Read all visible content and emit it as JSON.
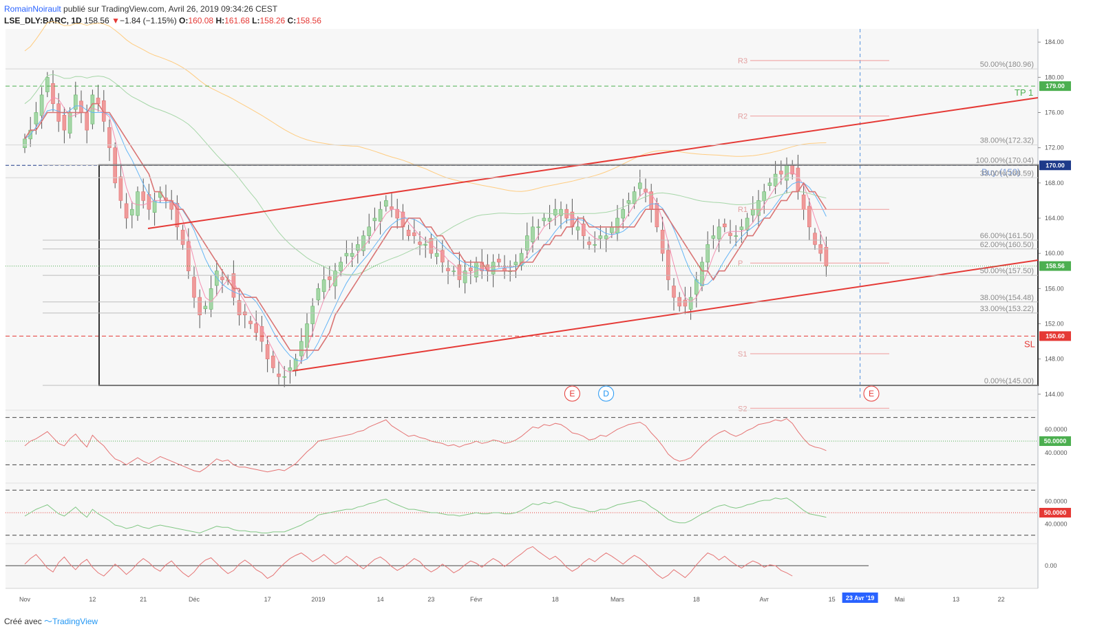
{
  "header": {
    "author": "RomainNoirault",
    "published": "publié sur TradingView.com, Avril 26, 2019 09:34:26 CEST",
    "symbol": "LSE_DLY:BARC, 1D",
    "last": "158.56",
    "change_arrow": "▼",
    "change": "−1.84 (−1.15%)",
    "o_label": "O:",
    "o_value": "160.08",
    "h_label": "H:",
    "h_value": "161.68",
    "l_label": "L:",
    "l_value": "158.26",
    "c_label": "C:",
    "c_value": "158.56"
  },
  "footer": {
    "created_with": "Créé avec",
    "brand": "TradingView"
  },
  "colors": {
    "up": "#a5d6a7",
    "down": "#ef9a9a",
    "wick": "#555555",
    "channel": "#e53935",
    "box": "#333333",
    "tp": "#4caf50",
    "sl": "#e53935",
    "sma_blue": "#64b5f6",
    "sma_pink": "#f48fb1",
    "sma_green": "#a5d6a7",
    "sma_orange": "#ffcc80",
    "rsi": "#e57373",
    "osc2": "#81c784",
    "last_price_tag": "#4caf50",
    "cursor_tag": "#2962ff"
  },
  "chart_data": [
    {
      "type": "candlestick",
      "symbol": "LSE_DLY:BARC",
      "interval": "1D",
      "y_axis": {
        "ticks": [
          144.0,
          148.0,
          152.0,
          156.0,
          160.0,
          164.0,
          168.0,
          172.0,
          176.0,
          180.0,
          184.0
        ],
        "tick_labels": [
          "144.00",
          "148.00",
          "152.00",
          "156.00",
          "160.00",
          "164.00",
          "168.00",
          "172.00",
          "176.00",
          "180.00",
          "184.00"
        ],
        "range": [
          142.5,
          185.5
        ]
      },
      "x_axis": {
        "labels": [
          "Nov",
          "12",
          "21",
          "Déc",
          "17",
          "2019",
          "14",
          "23",
          "Févr",
          "18",
          "Mars",
          "18",
          "Avr",
          "15",
          "Mai",
          "13",
          "22"
        ],
        "label_bar_index": [
          0,
          12,
          21,
          30,
          43,
          52,
          63,
          72,
          80,
          94,
          105,
          119,
          131,
          143,
          155,
          165,
          173
        ],
        "cursor_label": "23 Avr '19",
        "cursor_bar_index": 148
      },
      "close": [
        173,
        174,
        176,
        178,
        180,
        177,
        175,
        174,
        176,
        178,
        176,
        174,
        178,
        177,
        175,
        172,
        168,
        166,
        164,
        165,
        167,
        166,
        165,
        166,
        167,
        166,
        165,
        163,
        161,
        158,
        155,
        153,
        154,
        156,
        158,
        157,
        157,
        155,
        153,
        153,
        152,
        151,
        150,
        148,
        147,
        146,
        146,
        147,
        148,
        150,
        152,
        154,
        156,
        157,
        157,
        158,
        159,
        160,
        160,
        161,
        162,
        163,
        164,
        165,
        166,
        165,
        164,
        163,
        162,
        162,
        161,
        161,
        160,
        160,
        159,
        158,
        158,
        157,
        158,
        158,
        159,
        158,
        158,
        159,
        159,
        158,
        158,
        159,
        160,
        162,
        163,
        163,
        164,
        164,
        165,
        165,
        164,
        163,
        163,
        162,
        161,
        161,
        162,
        162,
        163,
        164,
        165,
        166,
        167,
        168,
        167,
        165,
        163,
        160,
        157,
        155,
        154,
        154,
        155,
        157,
        159,
        161,
        162,
        163,
        163,
        162,
        162,
        163,
        164,
        165,
        166,
        167,
        168,
        169,
        169,
        170,
        169,
        167,
        165,
        163,
        161,
        160,
        158.56
      ],
      "annotations": {
        "horizontal_levels": [
          {
            "label": "TP 1",
            "price": 179.0,
            "tag": "179.00"
          },
          {
            "label": "SL",
            "price": 150.6,
            "tag": "150.60"
          },
          {
            "label": "Buy (150)",
            "price": 170.0,
            "tag": "170.00"
          }
        ],
        "last_price_tag": "158.56",
        "fibonacci": [
          {
            "level": "100.00%(170.04)",
            "price": 170.04
          },
          {
            "level": "66.00%(161.50)",
            "price": 161.5
          },
          {
            "level": "62.00%(160.50)",
            "price": 160.5
          },
          {
            "level": "50.00%(157.50)",
            "price": 157.5
          },
          {
            "level": "38.00%(154.48)",
            "price": 154.48
          },
          {
            "level": "33.00%(153.22)",
            "price": 153.22
          },
          {
            "level": "0.00%(145.00)",
            "price": 145.0
          }
        ],
        "fibonacci_extension": [
          {
            "level": "50.00%(180.96)",
            "price": 180.96
          },
          {
            "level": "38.00%(172.32)",
            "price": 172.32
          },
          {
            "level": "33.00%(168.59)",
            "price": 168.59
          }
        ],
        "pivots": [
          {
            "label": "R3",
            "price": 181.9
          },
          {
            "label": "R2",
            "price": 175.6
          },
          {
            "label": "R1",
            "price": 165.0
          },
          {
            "label": "P",
            "price": 158.9
          },
          {
            "label": "S1",
            "price": 148.6
          },
          {
            "label": "S2",
            "price": 142.4
          }
        ],
        "events": [
          {
            "label": "E",
            "bar_index": 97,
            "kind": "earnings"
          },
          {
            "label": "D",
            "bar_index": 103,
            "kind": "dividend"
          },
          {
            "label": "E",
            "bar_index": 150,
            "kind": "earnings"
          }
        ]
      }
    },
    {
      "type": "line",
      "name": "",
      "y_axis": {
        "tick_labels": [
          "60.0000",
          "40.0000"
        ],
        "ticks": [
          60,
          40
        ],
        "range": [
          25,
          75
        ]
      },
      "bands": [
        70,
        30
      ],
      "mid_tag": "50.0000",
      "values": [
        46,
        50,
        52,
        55,
        58,
        53,
        48,
        46,
        52,
        56,
        50,
        45,
        55,
        50,
        46,
        40,
        35,
        33,
        30,
        33,
        36,
        33,
        31,
        34,
        37,
        35,
        33,
        31,
        29,
        27,
        25,
        24,
        27,
        31,
        35,
        33,
        34,
        30,
        28,
        28,
        27,
        26,
        25,
        24,
        25,
        26,
        25,
        28,
        31,
        36,
        41,
        45,
        50,
        51,
        52,
        53,
        54,
        55,
        56,
        58,
        59,
        62,
        64,
        66,
        68,
        63,
        60,
        57,
        54,
        55,
        53,
        52,
        50,
        49,
        48,
        46,
        47,
        45,
        47,
        48,
        50,
        48,
        49,
        51,
        50,
        48,
        49,
        51,
        54,
        58,
        62,
        61,
        64,
        63,
        65,
        64,
        61,
        57,
        56,
        54,
        51,
        52,
        55,
        54,
        57,
        60,
        62,
        64,
        65,
        66,
        63,
        57,
        52,
        46,
        39,
        35,
        33,
        34,
        36,
        41,
        46,
        50,
        54,
        57,
        59,
        56,
        54,
        56,
        59,
        61,
        64,
        65,
        66,
        68,
        67,
        69,
        65,
        58,
        52,
        47,
        45,
        44,
        42
      ]
    },
    {
      "type": "line",
      "name": "",
      "y_axis": {
        "tick_labels": [
          "60.0000",
          "40.0000"
        ],
        "ticks": [
          60,
          40
        ],
        "range": [
          25,
          75
        ]
      },
      "bands": [
        70,
        30
      ],
      "mid_tag": "50.0000",
      "values": [
        47,
        50,
        53,
        55,
        57,
        53,
        49,
        47,
        51,
        55,
        50,
        46,
        53,
        49,
        46,
        43,
        39,
        38,
        36,
        37,
        39,
        37,
        36,
        38,
        39,
        38,
        37,
        36,
        35,
        34,
        33,
        32,
        34,
        36,
        38,
        37,
        37,
        35,
        34,
        34,
        33,
        33,
        32,
        32,
        33,
        33,
        33,
        35,
        37,
        39,
        42,
        44,
        48,
        49,
        50,
        51,
        52,
        53,
        53,
        55,
        56,
        58,
        59,
        61,
        62,
        59,
        57,
        55,
        53,
        53,
        52,
        51,
        50,
        50,
        49,
        48,
        48,
        47,
        48,
        49,
        50,
        49,
        49,
        50,
        50,
        49,
        49,
        50,
        52,
        55,
        58,
        57,
        59,
        58,
        60,
        59,
        57,
        55,
        54,
        53,
        51,
        51,
        53,
        53,
        55,
        57,
        58,
        59,
        60,
        61,
        59,
        55,
        52,
        48,
        44,
        42,
        41,
        41,
        43,
        46,
        49,
        51,
        54,
        56,
        57,
        55,
        54,
        55,
        57,
        58,
        60,
        61,
        61,
        63,
        62,
        63,
        60,
        56,
        52,
        49,
        48,
        47,
        46
      ]
    },
    {
      "type": "line",
      "name": "",
      "y_axis": {
        "tick_labels": [
          "0.00"
        ],
        "ticks": [
          0
        ],
        "range": [
          -2.6,
          2.6
        ]
      },
      "values": [
        0.2,
        0.9,
        1.4,
        0.6,
        -0.3,
        -0.8,
        0.4,
        1.1,
        0.2,
        -0.5,
        0.3,
        0.8,
        -0.2,
        -0.9,
        -1.3,
        -0.6,
        0.2,
        -0.4,
        -1.1,
        -0.5,
        0.3,
        0.9,
        0.4,
        -0.3,
        -0.7,
        0.1,
        0.6,
        -0.2,
        -0.9,
        -1.4,
        -0.8,
        0.1,
        0.7,
        1.0,
        0.3,
        -0.4,
        -1.0,
        -0.6,
        0.2,
        0.7,
        0.2,
        -0.5,
        -0.9,
        -1.6,
        -1.2,
        -0.4,
        0.3,
        0.9,
        1.3,
        1.6,
        1.1,
        0.5,
        0.9,
        1.4,
        0.8,
        0.2,
        0.6,
        1.2,
        0.7,
        0.1,
        -0.4,
        0.2,
        0.8,
        1.1,
        0.6,
        -0.1,
        -0.6,
        -0.2,
        0.3,
        0.9,
        0.5,
        -0.3,
        -0.8,
        -0.4,
        0.2,
        -0.3,
        -0.9,
        -0.5,
        0.1,
        0.6,
        0.3,
        -0.2,
        0.4,
        0.9,
        0.5,
        -0.1,
        0.4,
        1.0,
        1.5,
        2.1,
        2.4,
        1.8,
        1.3,
        0.8,
        1.2,
        0.6,
        -0.2,
        -0.7,
        -0.3,
        0.4,
        0.9,
        0.5,
        1.1,
        1.6,
        1.2,
        0.7,
        0.2,
        0.8,
        1.3,
        0.9,
        0.3,
        -0.4,
        -1.1,
        -1.6,
        -1.2,
        -0.5,
        -1.0,
        -1.5,
        -0.8,
        0.1,
        0.9,
        1.6,
        1.3,
        0.7,
        1.2,
        0.6,
        0.1,
        -0.3,
        0.2,
        0.6,
        0.3,
        -0.2,
        0.1,
        0.0,
        -0.6,
        -0.9,
        -1.3
      ]
    }
  ]
}
